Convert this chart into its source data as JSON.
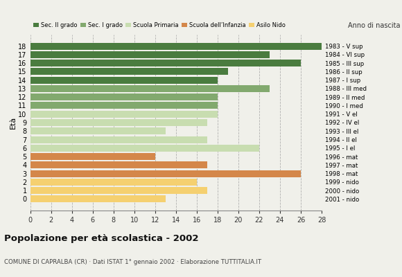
{
  "ages": [
    18,
    17,
    16,
    15,
    14,
    13,
    12,
    11,
    10,
    9,
    8,
    7,
    6,
    5,
    4,
    3,
    2,
    1,
    0
  ],
  "values": [
    28,
    23,
    26,
    19,
    18,
    23,
    18,
    18,
    18,
    17,
    13,
    17,
    22,
    12,
    17,
    26,
    16,
    17,
    13
  ],
  "categories": [
    "Sec. II grado",
    "Sec. I grado",
    "Scuola Primaria",
    "Scuola dell’Infanzia",
    "Asilo Nido"
  ],
  "colors": [
    "#4a7c3f",
    "#82a96e",
    "#c8ddb0",
    "#d4874a",
    "#f5d070"
  ],
  "bar_color_map": {
    "18": "#4a7c3f",
    "17": "#4a7c3f",
    "16": "#4a7c3f",
    "15": "#4a7c3f",
    "14": "#4a7c3f",
    "13": "#82a96e",
    "12": "#82a96e",
    "11": "#82a96e",
    "10": "#c8ddb0",
    "9": "#c8ddb0",
    "8": "#c8ddb0",
    "7": "#c8ddb0",
    "6": "#c8ddb0",
    "5": "#d4874a",
    "4": "#d4874a",
    "3": "#d4874a",
    "2": "#f5d070",
    "1": "#f5d070",
    "0": "#f5d070"
  },
  "right_labels": {
    "18": "1983 - V sup",
    "17": "1984 - VI sup",
    "16": "1985 - III sup",
    "15": "1986 - II sup",
    "14": "1987 - I sup",
    "13": "1988 - III med",
    "12": "1989 - II med",
    "11": "1990 - I med",
    "10": "1991 - V el",
    "9": "1992 - IV el",
    "8": "1993 - III el",
    "7": "1994 - II el",
    "6": "1995 - I el",
    "5": "1996 - mat",
    "4": "1997 - mat",
    "3": "1998 - mat",
    "2": "1999 - nido",
    "1": "2000 - nido",
    "0": "2001 - nido"
  },
  "ylabel": "Età",
  "right_ylabel": "Anno di nascita",
  "title": "Popolazione per età scolastica - 2002",
  "subtitle": "COMUNE DI CAPRALBA (CR) · Dati ISTAT 1° gennaio 2002 · Elaborazione TUTTITALIA.IT",
  "xlim": [
    0,
    28
  ],
  "xticks": [
    0,
    2,
    4,
    6,
    8,
    10,
    12,
    14,
    16,
    18,
    20,
    22,
    24,
    26,
    28
  ],
  "background_color": "#f0f0ea"
}
